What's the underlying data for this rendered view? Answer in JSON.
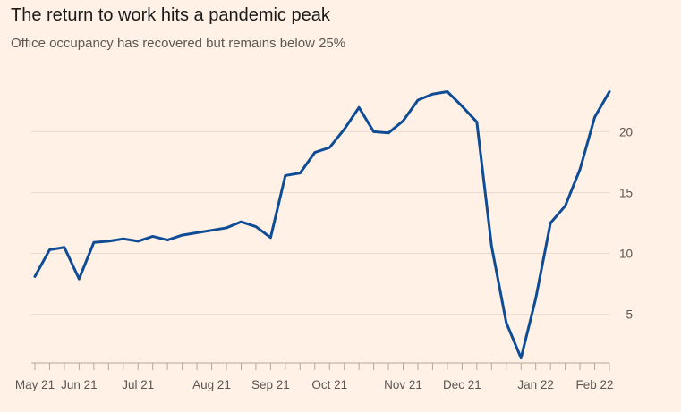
{
  "chart_data": {
    "type": "line",
    "title": "The return to work hits a pandemic peak",
    "subtitle": "Office occupancy has recovered but remains below 25%",
    "xlabel": "",
    "ylabel": "",
    "ylim": [
      1,
      24
    ],
    "yticks": [
      5,
      10,
      15,
      20
    ],
    "xtick_labels": [
      "May 21",
      "Jun 21",
      "Jul 21",
      "Aug 21",
      "Sep 21",
      "Oct 21",
      "Nov 21",
      "Dec 21",
      "Jan 22",
      "Feb 22"
    ],
    "xtick_label_index": [
      0,
      3,
      7,
      12,
      16,
      20,
      25,
      29,
      34,
      38
    ],
    "week_count": 40,
    "series": [
      {
        "name": "Office occupancy",
        "color": "#0f4c96",
        "values": [
          8.1,
          10.3,
          10.5,
          7.9,
          10.9,
          11.0,
          11.2,
          11.0,
          11.4,
          11.1,
          11.5,
          11.7,
          11.9,
          12.1,
          12.6,
          12.2,
          11.3,
          16.4,
          16.6,
          18.3,
          18.7,
          20.2,
          22.0,
          20.0,
          19.9,
          20.9,
          22.6,
          23.1,
          23.3,
          22.1,
          20.8,
          10.6,
          4.3,
          1.4,
          6.3,
          12.5,
          13.9,
          16.9,
          21.2,
          23.3
        ]
      }
    ]
  }
}
